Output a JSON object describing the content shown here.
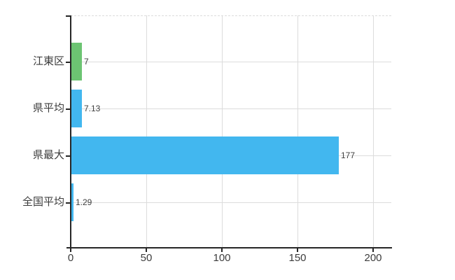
{
  "chart_data": {
    "type": "bar",
    "orientation": "horizontal",
    "categories": [
      "江東区",
      "県平均",
      "県最大",
      "全国平均"
    ],
    "values": [
      7,
      7.13,
      177,
      1.29
    ],
    "value_labels": [
      "7",
      "7.13",
      "177",
      "1.29"
    ],
    "bar_colors": [
      "#6cc472",
      "#42b7ef",
      "#42b7ef",
      "#42b7ef"
    ],
    "xticks": [
      0,
      50,
      100,
      150,
      200
    ],
    "xlim": [
      0,
      212
    ],
    "xlabel": "",
    "ylabel": "",
    "grid": true,
    "legend": false
  },
  "colors": {
    "background": "#ffffff",
    "axis": "#262626",
    "grid": "#dcdcdc",
    "tick_label": "#3c3c3c",
    "value_label": "#404040"
  }
}
